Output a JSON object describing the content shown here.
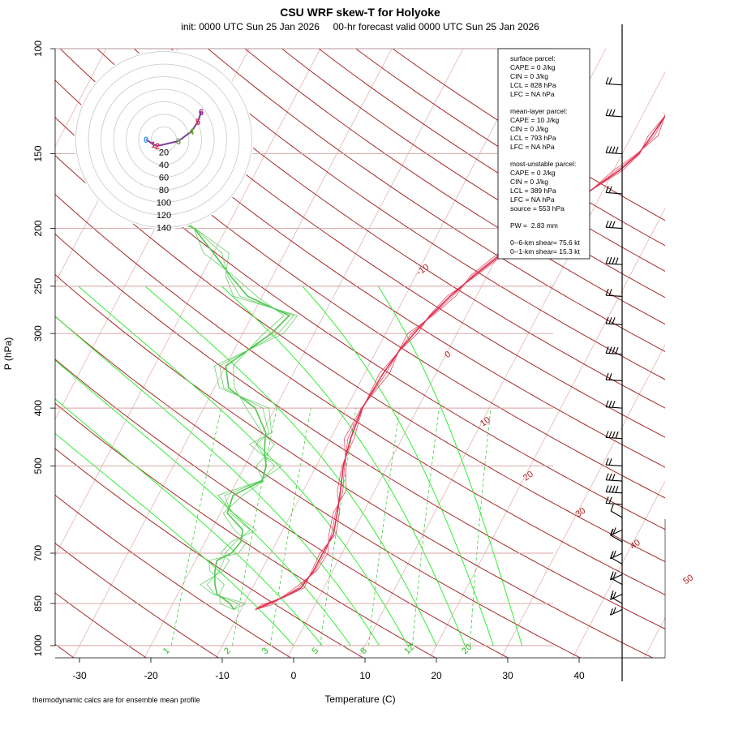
{
  "title": "CSU WRF skew-T for Holyoke",
  "subtitle": "init: 0000 UTC Sun 25 Jan 2026     00-hr forecast valid 0000 UTC Sun 25 Jan 2026",
  "footnote": "thermodynamic calcs are for ensemble mean profile",
  "colors": {
    "dry_adiabat": "#a52a2a",
    "isobar": "#d8a0a0",
    "isotherm": "#e2b4b4",
    "moist_adiabat": "#33ee33",
    "mixing_ratio": "#44cc44",
    "temperature": "#e03050",
    "dewpoint": "#50c850",
    "wind_barb": "#000000",
    "hodograph_ring": "#c8c8c8"
  },
  "info_box": {
    "surface_header": "surface parcel:",
    "surface_lines": [
      "CAPE = 0 J/kg",
      "CIN = 0 J/kg",
      "LCL = 828 hPa",
      "LFC = NA hPa"
    ],
    "mean_header": "mean-layer parcel:",
    "mean_lines": [
      "CAPE = 10 J/kg",
      "CIN = 0 J/kg",
      "LCL = 793 hPa",
      "LFC = NA hPa"
    ],
    "mu_header": "most-unstable parcel:",
    "mu_lines": [
      "CAPE = 0 J/kg",
      "CIN = 0 J/kg",
      "LCL = 389 hPa",
      "LFC = NA hPa",
      "source = 553 hPa"
    ],
    "pw": "PW =  2.83 mm",
    "shear6": "0--6-km shear= 75.6 kt",
    "shear1": "0--1-km shear= 15.3 kt"
  },
  "chart_data": {
    "type": "line",
    "title": "CSU WRF skew-T for Holyoke",
    "xlabel": "Temperature (C)",
    "ylabel": "P (hPa)",
    "x_ticks": [
      -30,
      -20,
      -10,
      0,
      10,
      20,
      30,
      40
    ],
    "x_range": [
      -33,
      46
    ],
    "y_scale": "log",
    "y_ticks": [
      100,
      150,
      200,
      250,
      300,
      400,
      500,
      700,
      850,
      1000
    ],
    "y_range": [
      1000,
      100
    ],
    "isotherm_labels": [
      "-10",
      "0",
      "10",
      "20",
      "30",
      "40",
      "50"
    ],
    "mixing_ratio_labels": [
      "1",
      "2",
      "3",
      "5",
      "8",
      "12",
      "20"
    ],
    "mixing_ratio_values": [
      1,
      2,
      3,
      5,
      8,
      12,
      20
    ],
    "series": [
      {
        "kind": "temperature",
        "pressure": [
          870,
          855,
          830,
          800,
          750,
          700,
          650,
          600,
          550,
          500,
          450,
          400,
          350,
          320,
          300,
          280,
          260,
          240,
          220,
          200,
          180,
          160,
          150,
          140,
          130,
          125,
          120,
          115
        ],
        "values": [
          -8,
          -7,
          -5,
          -3.2,
          -2.7,
          -2.7,
          -2.6,
          -3.6,
          -4.8,
          -6.2,
          -7.2,
          -7.8,
          -7.4,
          -6.8,
          -6,
          -5,
          -3.7,
          -1.8,
          0.6,
          3.3,
          6.9,
          10.8,
          12.3,
          12.8,
          13.2,
          13.6,
          14,
          14.6
        ]
      },
      {
        "kind": "dewpoint",
        "pressure": [
          870,
          850,
          820,
          790,
          750,
          720,
          700,
          670,
          640,
          600,
          560,
          530,
          500,
          480,
          460,
          440,
          400,
          370,
          340,
          300,
          280,
          260,
          240,
          220,
          200,
          190,
          180
        ],
        "values": [
          -11,
          -12,
          -14.5,
          -15.5,
          -16.5,
          -17,
          -15.5,
          -15,
          -15.6,
          -19,
          -19.5,
          -16.5,
          -17,
          -18,
          -18.8,
          -19.5,
          -22.8,
          -28,
          -30,
          -26,
          -24.8,
          -32,
          -36,
          -40,
          -44.5,
          -49,
          -52
        ]
      }
    ],
    "wind_barb_pressures": [
      115,
      130,
      150,
      175,
      200,
      230,
      260,
      290,
      325,
      360,
      400,
      450,
      500,
      530,
      555,
      580,
      610,
      640,
      670,
      700,
      730,
      760,
      790,
      820,
      850,
      870
    ],
    "hodograph": {
      "ring_labels": [
        "20",
        "40",
        "60",
        "80",
        "100",
        "120",
        "140"
      ],
      "point_labels": [
        "0",
        "1",
        "2",
        "3",
        "4",
        "5",
        "6"
      ]
    }
  }
}
